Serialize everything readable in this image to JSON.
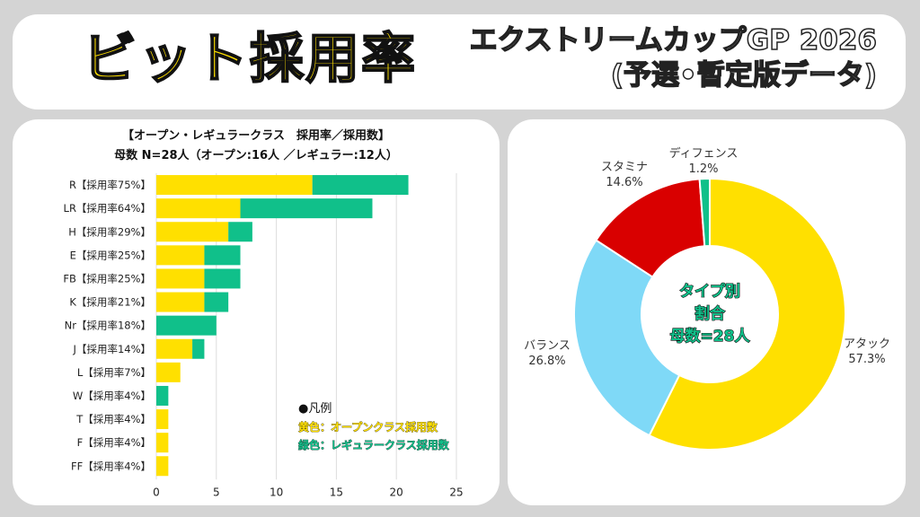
{
  "header": {
    "title": "ビット採用率",
    "subtitle_line1": "エクストリームカップGP 2026",
    "subtitle_line2": "(予選•暫定版データ)"
  },
  "colors": {
    "open": "#ffe000",
    "regular": "#10c08a",
    "attack": "#ffe000",
    "balance": "#7fd9f7",
    "stamina": "#d90000",
    "defense": "#10c08a"
  },
  "bar_chart": {
    "title_line1": "【オープン・レギュラークラス　採用率／採用数】",
    "title_line2": "母数 N=28人（オープン:16人 ／レギュラー:12人）",
    "legend": {
      "heading": "●凡例",
      "open_label": "黄色：オープンクラス採用数",
      "regular_label": "緑色：レギュラークラス採用数"
    }
  },
  "pie_chart": {
    "center_line1": "タイプ別",
    "center_line2": "割合",
    "center_line3": "母数=28人"
  },
  "chart_data": [
    {
      "type": "bar",
      "orientation": "horizontal",
      "stacked": true,
      "categories": [
        "R【採用率75%】",
        "LR【採用率64%】",
        "H【採用率29%】",
        "E【採用率25%】",
        "FB【採用率25%】",
        "K【採用率21%】",
        "Nr【採用率18%】",
        "J【採用率14%】",
        "L【採用率7%】",
        "W【採用率4%】",
        "T【採用率4%】",
        "F【採用率4%】",
        "FF【採用率4%】"
      ],
      "series": [
        {
          "key": "open",
          "values": [
            13,
            7,
            6,
            4,
            4,
            4,
            0,
            3,
            2,
            0,
            1,
            1,
            1
          ]
        },
        {
          "key": "regular",
          "values": [
            8,
            11,
            2,
            3,
            3,
            2,
            5,
            1,
            0,
            1,
            0,
            0,
            0
          ]
        }
      ],
      "xlim": [
        0,
        25
      ],
      "xticks": [
        0,
        5,
        10,
        15,
        20,
        25
      ],
      "grid": true
    },
    {
      "type": "pie",
      "donut": true,
      "slices": [
        {
          "label": "アタック",
          "value": 57.3,
          "value_text": "57.3%",
          "color": "#ffe000"
        },
        {
          "label": "バランス",
          "value": 26.8,
          "value_text": "26.8%",
          "color": "#7fd9f7"
        },
        {
          "label": "スタミナ",
          "value": 14.6,
          "value_text": "14.6%",
          "color": "#d90000"
        },
        {
          "label": "ディフェンス",
          "value": 1.2,
          "value_text": "1.2%",
          "color": "#10c08a"
        }
      ]
    }
  ]
}
